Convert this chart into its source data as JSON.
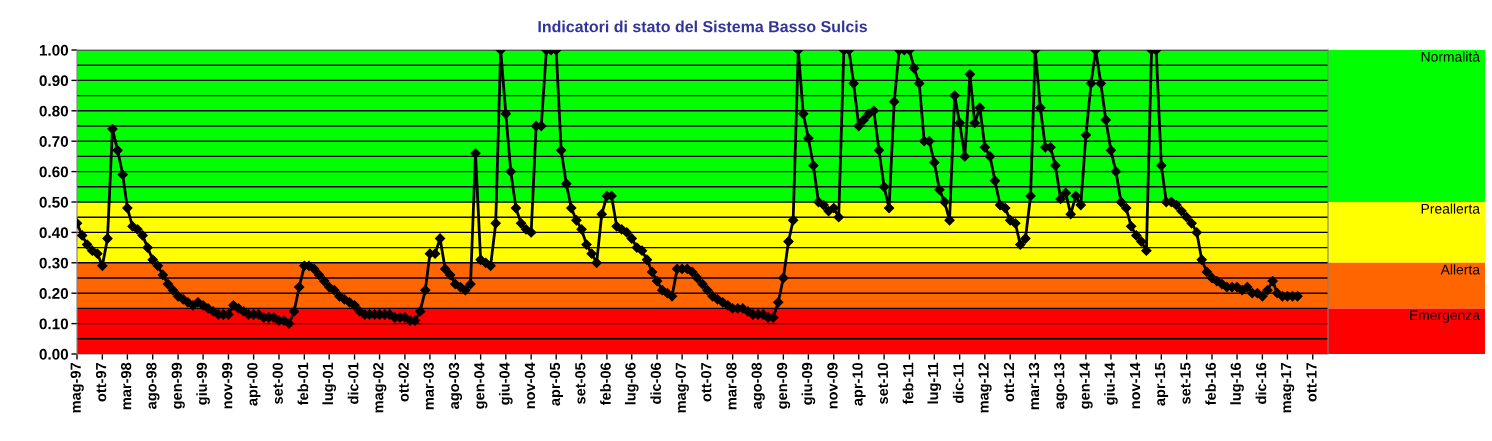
{
  "chart_data": {
    "type": "line",
    "title": "Indicatori di stato del Sistema Basso Sulcis",
    "x": [
      "1997-05",
      "1997-06",
      "1997-07",
      "1997-08",
      "1997-09",
      "1997-10",
      "1997-11",
      "1997-12",
      "1998-01",
      "1998-02",
      "1998-03",
      "1998-04",
      "1998-05",
      "1998-06",
      "1998-07",
      "1998-08",
      "1998-09",
      "1998-10",
      "1998-11",
      "1998-12",
      "1999-01",
      "1999-02",
      "1999-03",
      "1999-04",
      "1999-05",
      "1999-06",
      "1999-07",
      "1999-08",
      "1999-09",
      "1999-10",
      "1999-11",
      "1999-12",
      "2000-01",
      "2000-02",
      "2000-03",
      "2000-04",
      "2000-05",
      "2000-06",
      "2000-07",
      "2000-08",
      "2000-09",
      "2000-10",
      "2000-11",
      "2000-12",
      "2001-01",
      "2001-02",
      "2001-03",
      "2001-04",
      "2001-05",
      "2001-06",
      "2001-07",
      "2001-08",
      "2001-09",
      "2001-10",
      "2001-11",
      "2001-12",
      "2002-01",
      "2002-02",
      "2002-03",
      "2002-04",
      "2002-05",
      "2002-06",
      "2002-07",
      "2002-08",
      "2002-09",
      "2002-10",
      "2002-11",
      "2002-12",
      "2003-01",
      "2003-02",
      "2003-03",
      "2003-04",
      "2003-05",
      "2003-06",
      "2003-07",
      "2003-08",
      "2003-09",
      "2003-10",
      "2003-11",
      "2003-12",
      "2004-01",
      "2004-02",
      "2004-03",
      "2004-04",
      "2004-05",
      "2004-06",
      "2004-07",
      "2004-08",
      "2004-09",
      "2004-10",
      "2004-11",
      "2004-12",
      "2005-01",
      "2005-02",
      "2005-03",
      "2005-04",
      "2005-05",
      "2005-06",
      "2005-07",
      "2005-08",
      "2005-09",
      "2005-10",
      "2005-11",
      "2005-12",
      "2006-01",
      "2006-02",
      "2006-03",
      "2006-04",
      "2006-05",
      "2006-06",
      "2006-07",
      "2006-08",
      "2006-09",
      "2006-10",
      "2006-11",
      "2006-12",
      "2007-01",
      "2007-02",
      "2007-03",
      "2007-04",
      "2007-05",
      "2007-06",
      "2007-07",
      "2007-08",
      "2007-09",
      "2007-10",
      "2007-11",
      "2007-12",
      "2008-01",
      "2008-02",
      "2008-03",
      "2008-04",
      "2008-05",
      "2008-06",
      "2008-07",
      "2008-08",
      "2008-09",
      "2008-10",
      "2008-11",
      "2008-12",
      "2009-01",
      "2009-02",
      "2009-03",
      "2009-04",
      "2009-05",
      "2009-06",
      "2009-07",
      "2009-08",
      "2009-09",
      "2009-10",
      "2009-11",
      "2009-12",
      "2010-01",
      "2010-02",
      "2010-03",
      "2010-04",
      "2010-05",
      "2010-06",
      "2010-07",
      "2010-08",
      "2010-09",
      "2010-10",
      "2010-11",
      "2010-12",
      "2011-01",
      "2011-02",
      "2011-03",
      "2011-04",
      "2011-05",
      "2011-06",
      "2011-07",
      "2011-08",
      "2011-09",
      "2011-10",
      "2011-11",
      "2011-12",
      "2012-01",
      "2012-02",
      "2012-03",
      "2012-04",
      "2012-05",
      "2012-06",
      "2012-07",
      "2012-08",
      "2012-09",
      "2012-10",
      "2012-11",
      "2012-12",
      "2013-01",
      "2013-02",
      "2013-03",
      "2013-04",
      "2013-05",
      "2013-06",
      "2013-07",
      "2013-08",
      "2013-09",
      "2013-10",
      "2013-11",
      "2013-12",
      "2014-01",
      "2014-02",
      "2014-03",
      "2014-04",
      "2014-05",
      "2014-06",
      "2014-07",
      "2014-08",
      "2014-09",
      "2014-10",
      "2014-11",
      "2014-12",
      "2015-01",
      "2015-02",
      "2015-03",
      "2015-04",
      "2015-05",
      "2015-06",
      "2015-07",
      "2015-08",
      "2015-09",
      "2015-10",
      "2015-11",
      "2015-12",
      "2016-01",
      "2016-02",
      "2016-03",
      "2016-04",
      "2016-05",
      "2016-06",
      "2016-07",
      "2016-08",
      "2016-09",
      "2016-10",
      "2016-11",
      "2016-12",
      "2017-01",
      "2017-02",
      "2017-03",
      "2017-04",
      "2017-05",
      "2017-06",
      "2017-07"
    ],
    "series": [
      {
        "color": "#000000",
        "values": [
          0.43,
          0.39,
          0.36,
          0.34,
          0.33,
          0.29,
          0.38,
          0.74,
          0.67,
          0.59,
          0.48,
          0.42,
          0.41,
          0.39,
          0.35,
          0.31,
          0.29,
          0.26,
          0.23,
          0.21,
          0.19,
          0.18,
          0.17,
          0.16,
          0.17,
          0.16,
          0.15,
          0.14,
          0.13,
          0.13,
          0.13,
          0.16,
          0.15,
          0.14,
          0.13,
          0.13,
          0.13,
          0.12,
          0.12,
          0.12,
          0.11,
          0.11,
          0.1,
          0.14,
          0.22,
          0.29,
          0.29,
          0.28,
          0.26,
          0.24,
          0.22,
          0.21,
          0.19,
          0.18,
          0.17,
          0.16,
          0.14,
          0.13,
          0.13,
          0.13,
          0.13,
          0.13,
          0.13,
          0.12,
          0.12,
          0.12,
          0.11,
          0.11,
          0.14,
          0.21,
          0.33,
          0.33,
          0.38,
          0.28,
          0.26,
          0.23,
          0.22,
          0.21,
          0.23,
          0.66,
          0.31,
          0.3,
          0.29,
          0.43,
          1.0,
          0.79,
          0.6,
          0.48,
          0.43,
          0.41,
          0.4,
          0.75,
          0.75,
          1.0,
          1.0,
          1.0,
          0.67,
          0.56,
          0.48,
          0.44,
          0.41,
          0.36,
          0.33,
          0.3,
          0.46,
          0.52,
          0.52,
          0.42,
          0.41,
          0.4,
          0.38,
          0.35,
          0.34,
          0.31,
          0.27,
          0.24,
          0.21,
          0.2,
          0.19,
          0.28,
          0.28,
          0.28,
          0.27,
          0.25,
          0.23,
          0.21,
          0.19,
          0.18,
          0.17,
          0.16,
          0.15,
          0.15,
          0.15,
          0.14,
          0.13,
          0.13,
          0.13,
          0.12,
          0.12,
          0.17,
          0.25,
          0.37,
          0.44,
          1.0,
          0.79,
          0.71,
          0.62,
          0.5,
          0.49,
          0.47,
          0.48,
          0.45,
          1.0,
          1.0,
          0.89,
          0.75,
          0.77,
          0.79,
          0.8,
          0.67,
          0.55,
          0.48,
          0.83,
          1.0,
          1.0,
          1.0,
          0.94,
          0.89,
          0.7,
          0.7,
          0.63,
          0.54,
          0.5,
          0.44,
          0.85,
          0.76,
          0.65,
          0.92,
          0.76,
          0.81,
          0.68,
          0.65,
          0.57,
          0.49,
          0.48,
          0.44,
          0.43,
          0.36,
          0.38,
          0.52,
          1.0,
          0.81,
          0.68,
          0.68,
          0.62,
          0.51,
          0.53,
          0.46,
          0.52,
          0.49,
          0.72,
          0.89,
          1.0,
          0.89,
          0.77,
          0.67,
          0.6,
          0.5,
          0.48,
          0.42,
          0.39,
          0.37,
          0.34,
          1.0,
          1.0,
          0.62,
          0.5,
          0.5,
          0.49,
          0.47,
          0.45,
          0.43,
          0.4,
          0.31,
          0.27,
          0.25,
          0.24,
          0.23,
          0.22,
          0.22,
          0.22,
          0.21,
          0.22,
          0.2,
          0.2,
          0.19,
          0.21,
          0.24,
          0.2,
          0.19,
          0.19,
          0.19,
          0.19
        ]
      }
    ],
    "marker": "diamond",
    "line_style": "solid",
    "xlim": [
      "1997-05",
      "2018-01"
    ],
    "xticks": [
      {
        "value": "1997-05",
        "label": "mag-97"
      },
      {
        "value": "1997-10",
        "label": "ott-97"
      },
      {
        "value": "1998-03",
        "label": "mar-98"
      },
      {
        "value": "1998-08",
        "label": "ago-98"
      },
      {
        "value": "1999-01",
        "label": "gen-99"
      },
      {
        "value": "1999-06",
        "label": "giu-99"
      },
      {
        "value": "1999-11",
        "label": "nov-99"
      },
      {
        "value": "2000-04",
        "label": "apr-00"
      },
      {
        "value": "2000-09",
        "label": "set-00"
      },
      {
        "value": "2001-02",
        "label": "feb-01"
      },
      {
        "value": "2001-07",
        "label": "lug-01"
      },
      {
        "value": "2001-12",
        "label": "dic-01"
      },
      {
        "value": "2002-05",
        "label": "mag-02"
      },
      {
        "value": "2002-10",
        "label": "ott-02"
      },
      {
        "value": "2003-03",
        "label": "mar-03"
      },
      {
        "value": "2003-08",
        "label": "ago-03"
      },
      {
        "value": "2004-01",
        "label": "gen-04"
      },
      {
        "value": "2004-06",
        "label": "giu-04"
      },
      {
        "value": "2004-11",
        "label": "nov-04"
      },
      {
        "value": "2005-04",
        "label": "apr-05"
      },
      {
        "value": "2005-09",
        "label": "set-05"
      },
      {
        "value": "2006-02",
        "label": "feb-06"
      },
      {
        "value": "2006-07",
        "label": "lug-06"
      },
      {
        "value": "2006-12",
        "label": "dic-06"
      },
      {
        "value": "2007-05",
        "label": "mag-07"
      },
      {
        "value": "2007-10",
        "label": "ott-07"
      },
      {
        "value": "2008-03",
        "label": "mar-08"
      },
      {
        "value": "2008-08",
        "label": "ago-08"
      },
      {
        "value": "2009-01",
        "label": "gen-09"
      },
      {
        "value": "2009-06",
        "label": "giu-09"
      },
      {
        "value": "2009-11",
        "label": "nov-09"
      },
      {
        "value": "2010-04",
        "label": "apr-10"
      },
      {
        "value": "2010-09",
        "label": "set-10"
      },
      {
        "value": "2011-02",
        "label": "feb-11"
      },
      {
        "value": "2011-07",
        "label": "lug-11"
      },
      {
        "value": "2011-12",
        "label": "dic-11"
      },
      {
        "value": "2012-05",
        "label": "mag-12"
      },
      {
        "value": "2012-10",
        "label": "ott-12"
      },
      {
        "value": "2013-03",
        "label": "mar-13"
      },
      {
        "value": "2013-08",
        "label": "ago-13"
      },
      {
        "value": "2014-01",
        "label": "gen-14"
      },
      {
        "value": "2014-06",
        "label": "giu-14"
      },
      {
        "value": "2014-11",
        "label": "nov-14"
      },
      {
        "value": "2015-04",
        "label": "apr-15"
      },
      {
        "value": "2015-09",
        "label": "set-15"
      },
      {
        "value": "2016-02",
        "label": "feb-16"
      },
      {
        "value": "2016-07",
        "label": "lug-16"
      },
      {
        "value": "2016-12",
        "label": "dic-16"
      },
      {
        "value": "2017-05",
        "label": "mag-17"
      },
      {
        "value": "2017-10",
        "label": "ott-17"
      }
    ],
    "ylim": [
      0,
      1
    ],
    "yticks": [
      {
        "value": 0,
        "label": "0.00"
      },
      {
        "value": 0.05,
        "label": null
      },
      {
        "value": 0.1,
        "label": "0.10"
      },
      {
        "value": 0.15,
        "label": null
      },
      {
        "value": 0.2,
        "label": "0.20"
      },
      {
        "value": 0.25,
        "label": null
      },
      {
        "value": 0.3,
        "label": "0.30"
      },
      {
        "value": 0.35,
        "label": null
      },
      {
        "value": 0.4,
        "label": "0.40"
      },
      {
        "value": 0.45,
        "label": null
      },
      {
        "value": 0.5,
        "label": "0.50"
      },
      {
        "value": 0.55,
        "label": null
      },
      {
        "value": 0.6,
        "label": "0.60"
      },
      {
        "value": 0.65,
        "label": null
      },
      {
        "value": 0.7,
        "label": "0.70"
      },
      {
        "value": 0.75,
        "label": null
      },
      {
        "value": 0.8,
        "label": "0.80"
      },
      {
        "value": 0.85,
        "label": null
      },
      {
        "value": 0.9,
        "label": "0.90"
      },
      {
        "value": 0.95,
        "label": null
      },
      {
        "value": 1,
        "label": "1.00"
      }
    ],
    "grid": "y",
    "bands": [
      {
        "axis": "y",
        "from": 0.5,
        "to": 1,
        "label": "Normalità",
        "color": "#00ff00"
      },
      {
        "axis": "y",
        "from": 0.3,
        "to": 0.5,
        "label": "Preallerta",
        "color": "#ffff00"
      },
      {
        "axis": "y",
        "from": 0.15,
        "to": 0.3,
        "label": "Allerta",
        "color": "#ff6600"
      },
      {
        "axis": "y",
        "from": 0,
        "to": 0.15,
        "label": "Emergenza",
        "color": "#ff0000"
      }
    ]
  }
}
